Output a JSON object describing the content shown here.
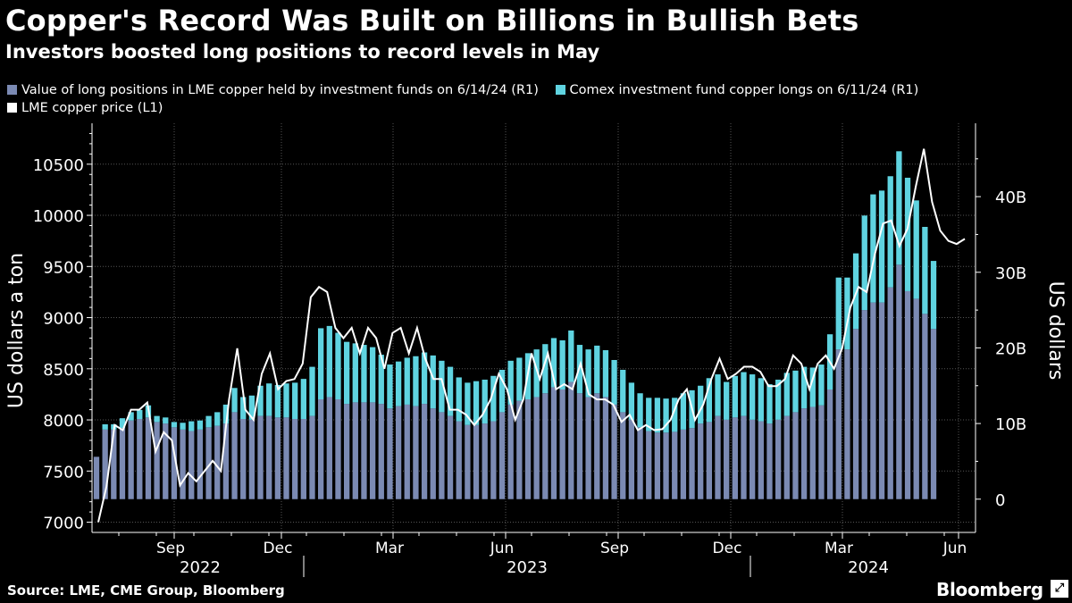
{
  "header": {
    "title": "Copper's Record Was Built on Billions in Bullish Bets",
    "subtitle": "Investors boosted long positions to record levels in May"
  },
  "footer": {
    "source": "Source: LME, CME Group, Bloomberg",
    "brand": "Bloomberg",
    "brand_mark": "⤢"
  },
  "colors": {
    "lme_long": "#7b8ab3",
    "comex_long": "#5fd3e0",
    "price_line": "#ffffff",
    "background": "#000000",
    "grid": "#555555"
  },
  "chart_data": {
    "type": "bar",
    "title": "Copper's Record Was Built on Billions in Bullish Bets",
    "subtitle": "Investors boosted long positions to record levels in May",
    "ylabel_left": "US dollars a ton",
    "ylabel_right": "US dollars",
    "ylim_left": [
      6900,
      10900
    ],
    "ylim_right": [
      -4.4,
      49.7
    ],
    "yticks_left": [
      7000,
      7500,
      8000,
      8500,
      9000,
      9500,
      10000,
      10500
    ],
    "yticks_left_labels": [
      "7000",
      "7500",
      "8000",
      "8500",
      "9000",
      "9500",
      "10000",
      "10500"
    ],
    "yticks_right": [
      0,
      10,
      20,
      30,
      40
    ],
    "yticks_right_labels": [
      "0",
      "10B",
      "20B",
      "30B",
      "40B"
    ],
    "xticks_month_labels": [
      "Sep",
      "Dec",
      "Mar",
      "Jun",
      "Sep",
      "Dec",
      "Mar",
      "Jun"
    ],
    "xticks_year_labels": [
      "2022",
      "2023",
      "2024"
    ],
    "legend": [
      {
        "label": "Value of long positions in LME copper held by investment funds  on 6/14/24 (R1)",
        "key": "lme_long"
      },
      {
        "label": "Comex investment fund copper longs on 6/11/24 (R1)",
        "key": "comex_long"
      },
      {
        "label": "LME copper price (L1)",
        "key": "price_line"
      }
    ],
    "legend_position": "top-left",
    "stacked": true,
    "units": "billions USD (bars), USD per ton (line)",
    "series": [
      {
        "name": "Value of long positions in LME copper held by investment funds  on 6/14/24 (R1)",
        "axis": "right",
        "values": [
          5.6,
          9.2,
          9.2,
          9.4,
          10.4,
          10.6,
          10.8,
          10.2,
          10,
          9.5,
          9.2,
          9,
          9.2,
          9.5,
          9.7,
          10,
          11.5,
          10.6,
          10.5,
          11,
          11,
          10.8,
          10.8,
          10.6,
          10.6,
          11,
          13.2,
          13.5,
          13.2,
          12.6,
          12.8,
          12.8,
          12.8,
          12.6,
          12,
          12.3,
          12.5,
          12.3,
          12.6,
          12,
          11.5,
          11,
          10.3,
          9.8,
          9.8,
          10,
          10.3,
          11.5,
          12.5,
          13,
          13.2,
          13.5,
          14,
          14.8,
          14.5,
          15.5,
          14,
          13.5,
          14,
          13.5,
          12.5,
          11.5,
          10.5,
          9.5,
          9,
          8.8,
          8.8,
          8.9,
          9.2,
          9.4,
          10,
          10.2,
          11,
          10.5,
          10.8,
          11,
          10.5,
          10.3,
          10,
          10.5,
          11,
          11.5,
          12,
          12.2,
          12.4,
          14.5,
          19.8,
          19.8,
          22.5,
          25,
          26,
          26,
          28,
          31,
          27.5,
          26.5,
          24.5,
          22.5
        ]
      },
      {
        "name": "Comex investment fund copper longs on 6/11/24 (R1)",
        "axis": "right",
        "values": [
          0,
          0.7,
          0.7,
          1.3,
          1.1,
          1.2,
          1.6,
          0.8,
          0.8,
          0.7,
          0.9,
          1.3,
          1.2,
          1.5,
          1.8,
          2.5,
          3.2,
          2.9,
          3.2,
          4,
          4.3,
          4.3,
          4.5,
          4.8,
          5.3,
          6.5,
          9.4,
          9.4,
          8.8,
          8.2,
          7.8,
          7.6,
          7.3,
          6.5,
          5.8,
          5.9,
          6.2,
          6.6,
          6.8,
          7,
          6.8,
          6.5,
          5.8,
          5.6,
          5.8,
          5.8,
          6,
          5.6,
          5.8,
          5.7,
          6.1,
          6.3,
          6.5,
          6.5,
          6.5,
          6.8,
          6.4,
          6.3,
          6.3,
          6.2,
          5.9,
          5.6,
          4.9,
          4.5,
          4.4,
          4.6,
          4.5,
          4.5,
          4.8,
          5,
          5,
          5.8,
          5.5,
          5,
          5.5,
          5.8,
          6,
          5.7,
          5.2,
          5.3,
          5.7,
          5.5,
          5.5,
          5.2,
          5.4,
          7.3,
          9.5,
          9.5,
          10,
          12.5,
          14.3,
          14.8,
          14.7,
          15,
          15,
          13,
          11.5,
          9
        ]
      },
      {
        "name": "LME copper price (L1)",
        "axis": "left",
        "type": "line",
        "values": [
          7000,
          7350,
          7950,
          7900,
          8100,
          8100,
          8170,
          7690,
          7880,
          7800,
          7360,
          7480,
          7400,
          7500,
          7600,
          7500,
          8200,
          8700,
          8100,
          8000,
          8450,
          8650,
          8300,
          8380,
          8400,
          8550,
          9200,
          9300,
          9250,
          8900,
          8800,
          8900,
          8650,
          8900,
          8800,
          8500,
          8850,
          8900,
          8650,
          8900,
          8600,
          8400,
          8400,
          8100,
          8100,
          8050,
          7950,
          8050,
          8200,
          8450,
          8300,
          8000,
          8200,
          8650,
          8400,
          8650,
          8300,
          8350,
          8300,
          8550,
          8250,
          8200,
          8200,
          8150,
          7980,
          8050,
          7900,
          7950,
          7900,
          7910,
          8000,
          8200,
          8300,
          8000,
          8150,
          8400,
          8600,
          8400,
          8450,
          8520,
          8520,
          8470,
          8330,
          8330,
          8400,
          8630,
          8550,
          8300,
          8550,
          8630,
          8500,
          8700,
          9100,
          9300,
          9250,
          9620,
          9920,
          9950,
          9700,
          9870,
          10280,
          10650,
          10130,
          9850,
          9750,
          9720,
          9770
        ]
      }
    ],
    "annotations": []
  }
}
